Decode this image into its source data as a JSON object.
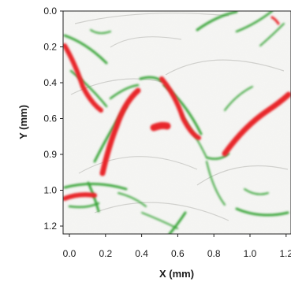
{
  "chart_data": {
    "type": "heatmap",
    "title": "",
    "xlabel": "X (mm)",
    "ylabel": "Y (mm)",
    "x_ticks": [
      "0.0",
      "0.2",
      "0.4",
      "0.6",
      "0.8",
      "1.0",
      "1.2"
    ],
    "y_ticks": [
      "0.0",
      "0.2",
      "0.4",
      "0.6",
      "0.9",
      "1.0",
      "1.2"
    ],
    "x_range": [
      0.0,
      1.25
    ],
    "y_range": [
      0.0,
      1.25
    ],
    "y_inverted": true,
    "grid": false,
    "colors": {
      "positive": "#e8262a",
      "negative": "#3aa63a",
      "background": "#f6f6f4",
      "frame": "#222222"
    },
    "series": [
      {
        "name": "",
        "color": "#e8262a",
        "kind": "strong-ridges"
      },
      {
        "name": "",
        "color": "#3aa63a",
        "kind": "edge-features"
      }
    ]
  }
}
